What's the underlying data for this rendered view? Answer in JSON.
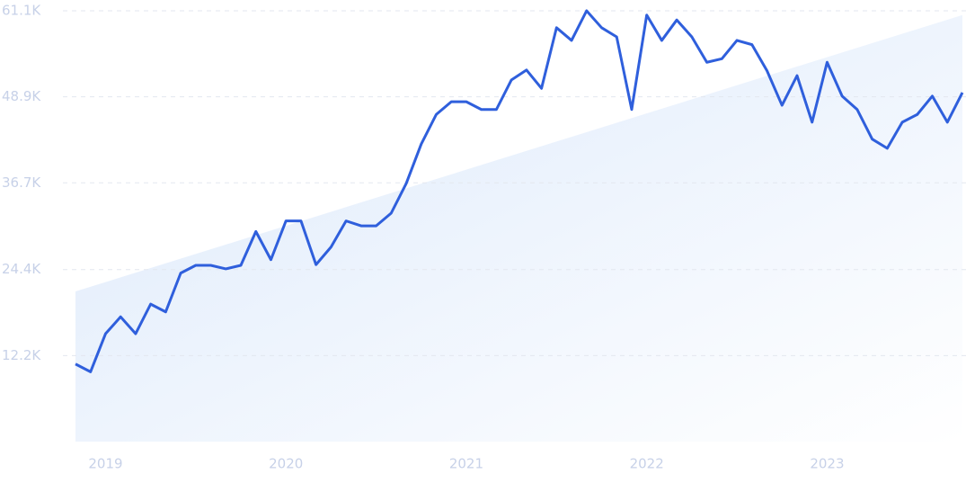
{
  "chart_data": {
    "type": "line",
    "categories": [
      null,
      null,
      "2019",
      null,
      null,
      null,
      null,
      null,
      null,
      null,
      null,
      null,
      null,
      null,
      "2020",
      null,
      null,
      null,
      null,
      null,
      null,
      null,
      null,
      null,
      null,
      null,
      "2021",
      null,
      null,
      null,
      null,
      null,
      null,
      null,
      null,
      null,
      null,
      null,
      "2022",
      null,
      null,
      null,
      null,
      null,
      null,
      null,
      null,
      null,
      null,
      null,
      "2023",
      null,
      null,
      null,
      null,
      null,
      null,
      null,
      null,
      null
    ],
    "series": [
      {
        "color": "#2f5fdc",
        "values": [
          11.0,
          9.9,
          15.3,
          17.7,
          15.3,
          19.5,
          18.4,
          23.9,
          25.0,
          25.0,
          24.5,
          25.0,
          29.8,
          25.8,
          31.3,
          31.3,
          25.1,
          27.6,
          31.3,
          30.6,
          30.6,
          32.4,
          36.6,
          42.2,
          46.4,
          48.2,
          48.2,
          47.1,
          47.1,
          51.3,
          52.7,
          50.1,
          58.7,
          56.9,
          61.1,
          58.7,
          57.4,
          47.1,
          60.5,
          56.9,
          59.8,
          57.4,
          53.8,
          54.3,
          56.9,
          56.3,
          52.6,
          47.7,
          51.9,
          45.3,
          53.8,
          49.0,
          47.1,
          42.9,
          41.6,
          45.3,
          46.4,
          49.0,
          45.3,
          49.5
        ]
      }
    ],
    "trend": [
      21.3,
      60.5
    ],
    "trend_color": "#dce9fb",
    "ylim": [
      0,
      61.1
    ],
    "yticks": [
      {
        "value": 12.2,
        "label": "12.2K"
      },
      {
        "value": 24.4,
        "label": "24.4K"
      },
      {
        "value": 36.7,
        "label": "36.7K"
      },
      {
        "value": 48.9,
        "label": "48.9K"
      },
      {
        "value": 61.1,
        "label": "61.1K"
      }
    ],
    "grid": true
  }
}
